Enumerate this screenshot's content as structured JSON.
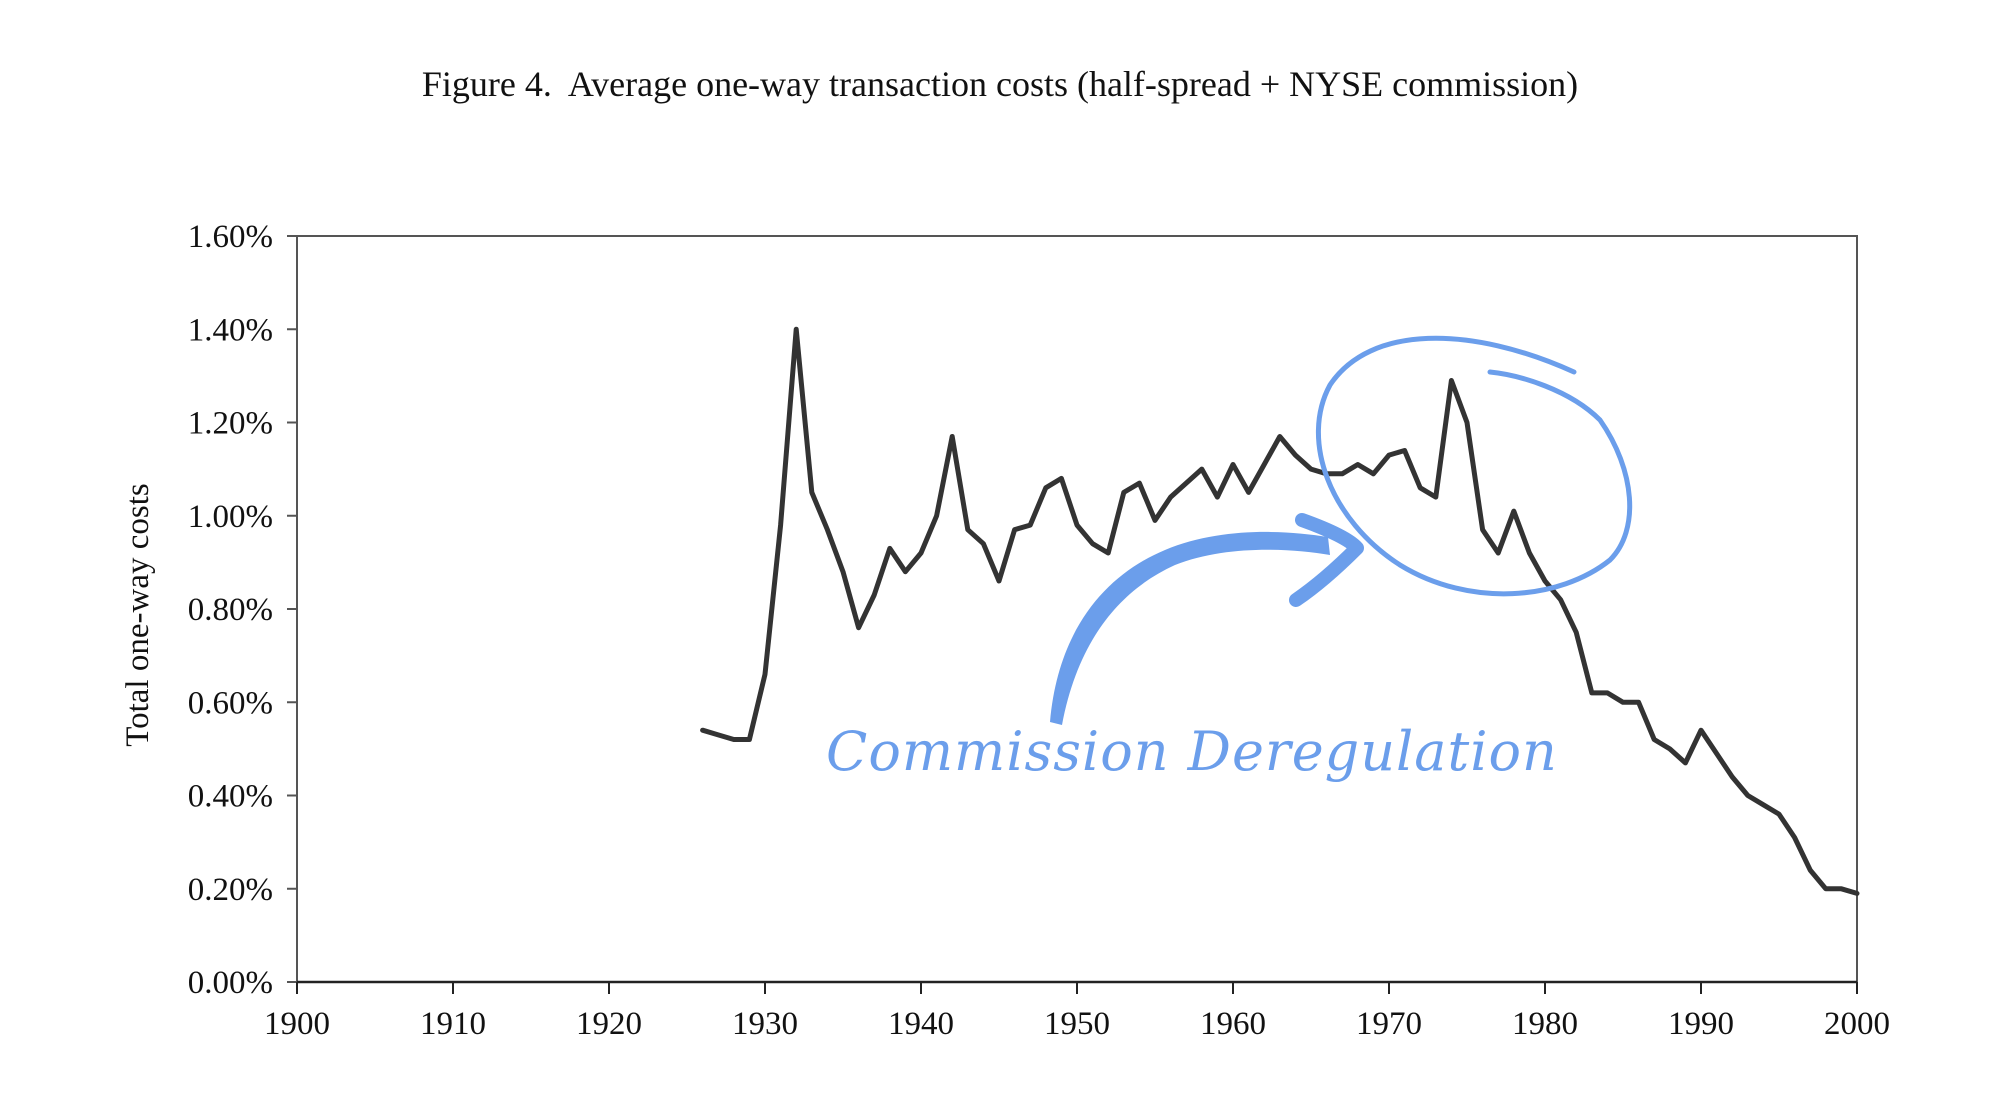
{
  "colors": {
    "line": "#333333",
    "axis": "#555555",
    "text": "#111111",
    "annotation": "#6B9EEB"
  },
  "chart_data": {
    "type": "line",
    "title": "Figure 4.  Average one-way transaction costs (half-spread + NYSE commission)",
    "xlabel": "",
    "ylabel": "Total one-way costs",
    "xlim": [
      1900,
      2000
    ],
    "ylim": [
      0,
      1.6
    ],
    "x_ticks": [
      "1900",
      "1910",
      "1920",
      "1930",
      "1940",
      "1950",
      "1960",
      "1970",
      "1980",
      "1990",
      "2000"
    ],
    "y_ticks": [
      "0.00%",
      "0.20%",
      "0.40%",
      "0.60%",
      "0.80%",
      "1.00%",
      "1.20%",
      "1.40%",
      "1.60%"
    ],
    "grid": false,
    "series": [
      {
        "name": "Average one-way transaction costs",
        "x": [
          1926,
          1927,
          1928,
          1929,
          1930,
          1931,
          1932,
          1933,
          1934,
          1935,
          1936,
          1937,
          1938,
          1939,
          1940,
          1941,
          1942,
          1943,
          1944,
          1945,
          1946,
          1947,
          1948,
          1949,
          1950,
          1951,
          1952,
          1953,
          1954,
          1955,
          1956,
          1957,
          1958,
          1959,
          1960,
          1961,
          1962,
          1963,
          1964,
          1965,
          1966,
          1967,
          1968,
          1969,
          1970,
          1971,
          1972,
          1973,
          1974,
          1975,
          1976,
          1977,
          1978,
          1979,
          1980,
          1981,
          1982,
          1983,
          1984,
          1985,
          1986,
          1987,
          1988,
          1989,
          1990,
          1991,
          1992,
          1993,
          1994,
          1995,
          1996,
          1997,
          1998,
          1999,
          2000
        ],
        "values": [
          0.54,
          0.53,
          0.52,
          0.52,
          0.66,
          0.98,
          1.4,
          1.05,
          0.97,
          0.88,
          0.76,
          0.83,
          0.93,
          0.88,
          0.92,
          1.0,
          1.17,
          0.97,
          0.94,
          0.86,
          0.97,
          0.98,
          1.06,
          1.08,
          0.98,
          0.94,
          0.92,
          1.05,
          1.07,
          0.99,
          1.04,
          1.07,
          1.1,
          1.04,
          1.11,
          1.05,
          1.11,
          1.17,
          1.13,
          1.1,
          1.09,
          1.09,
          1.11,
          1.09,
          1.13,
          1.14,
          1.06,
          1.04,
          1.29,
          1.2,
          0.97,
          0.92,
          1.01,
          0.92,
          0.86,
          0.82,
          0.75,
          0.62,
          0.62,
          0.6,
          0.6,
          0.52,
          0.5,
          0.47,
          0.54,
          0.49,
          0.44,
          0.4,
          0.38,
          0.36,
          0.31,
          0.24,
          0.2,
          0.2,
          0.19
        ]
      }
    ],
    "annotations": [
      {
        "text": "Commission Deregulation",
        "style": "handwritten",
        "points_to_year": 1974
      }
    ]
  }
}
